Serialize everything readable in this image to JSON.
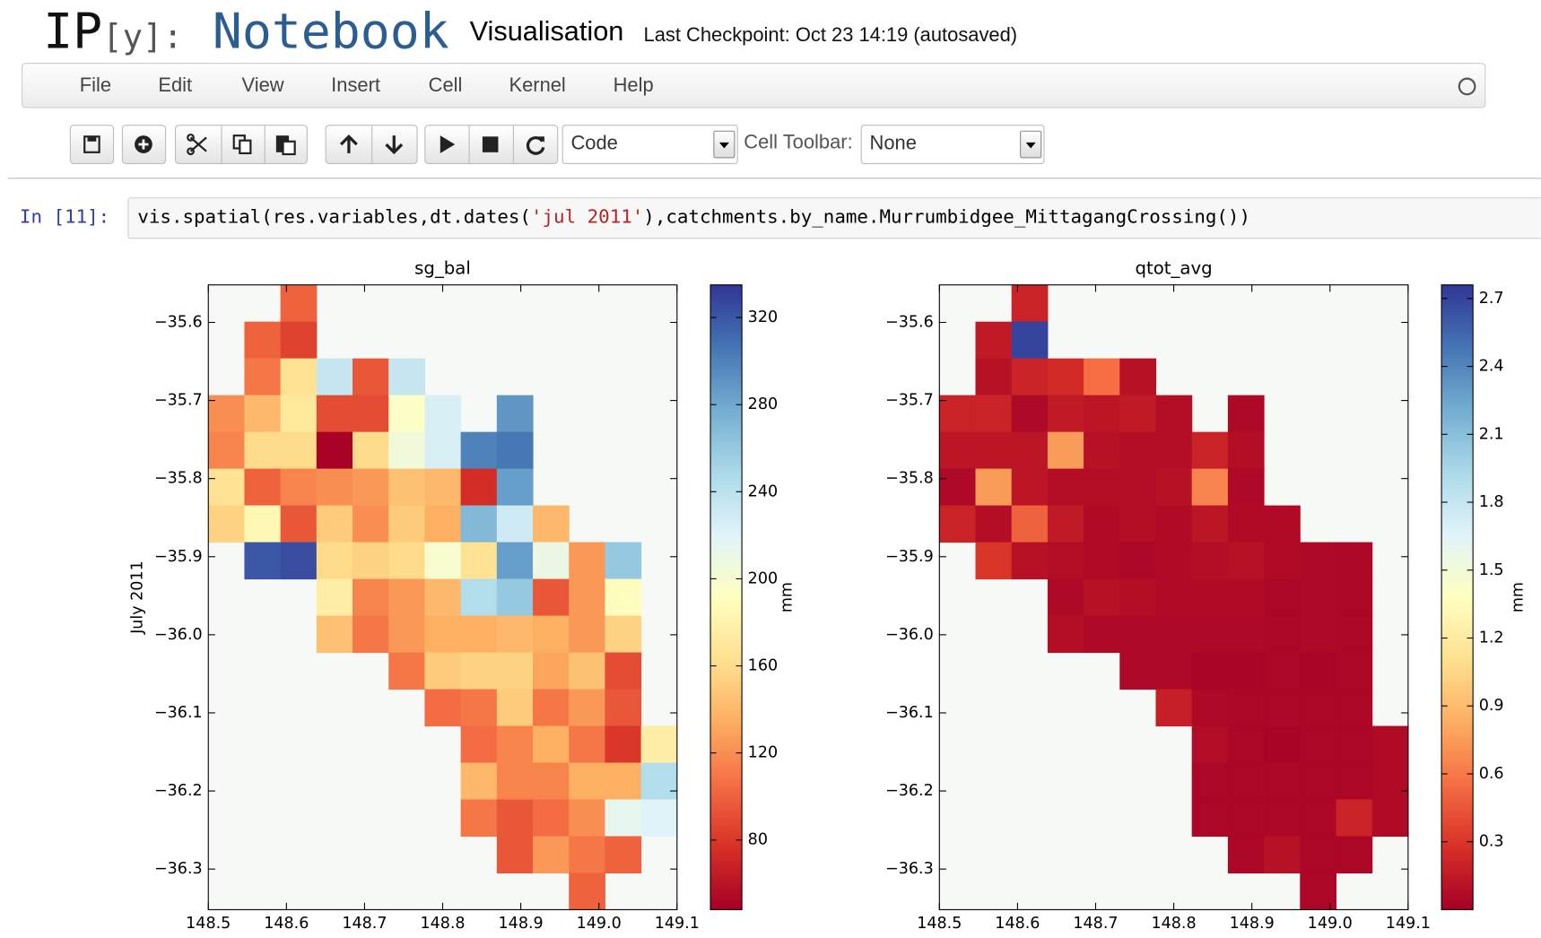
{
  "header": {
    "logo_ip": "IP",
    "logo_y": "[y]:",
    "logo_notebook": "Notebook",
    "notebook_name": "Visualisation",
    "checkpoint": "Last Checkpoint: Oct 23 14:19 (autosaved)"
  },
  "menu": [
    "File",
    "Edit",
    "View",
    "Insert",
    "Cell",
    "Kernel",
    "Help"
  ],
  "toolbar": {
    "cell_type": "Code",
    "cell_toolbar_label": "Cell Toolbar:",
    "cell_toolbar_value": "None"
  },
  "cell": {
    "prompt": "In [11]:",
    "code": [
      {
        "text": "vis.spatial(res.variables,dt.dates(",
        "color": "#000000"
      },
      {
        "text": "'jul 2011'",
        "color": "#ba2121"
      },
      {
        "text": "),catchments.by_name.Murrumbidgee_MittagangCrossing())",
        "color": "#000000"
      }
    ]
  },
  "chart_data": [
    {
      "type": "heatmap",
      "title": "sg_bal",
      "ylabel": "July 2011",
      "clabel": "mm",
      "colormap": [
        "#a50026",
        "#d73027",
        "#f46d43",
        "#fdae61",
        "#fee090",
        "#ffffbf",
        "#e0f3f8",
        "#abd9e9",
        "#74add1",
        "#4575b4",
        "#313695"
      ],
      "xlim": [
        148.5,
        149.1
      ],
      "xticks": [
        148.5,
        148.6,
        148.7,
        148.8,
        148.9,
        {
          "value": 149,
          "label": "149.0"
        },
        149.1
      ],
      "ylim": [
        -36.352,
        -35.552
      ],
      "yticks": [
        {
          "value": -35.6,
          "label": "−35.6"
        },
        {
          "value": -35.7,
          "label": "−35.7"
        },
        {
          "value": -35.8,
          "label": "−35.8"
        },
        {
          "value": -35.9,
          "label": "−35.9"
        },
        {
          "value": -36,
          "label": "−36.0"
        },
        {
          "value": -36.1,
          "label": "−36.1"
        },
        {
          "value": -36.2,
          "label": "−36.2"
        },
        {
          "value": -36.3,
          "label": "−36.3"
        }
      ],
      "clim": [
        48,
        335
      ],
      "cticks": [
        80,
        120,
        160,
        200,
        240,
        280,
        320
      ],
      "values": [
        [
          null,
          null,
          100,
          null,
          null,
          null,
          null,
          null,
          null,
          null,
          null,
          null,
          null
        ],
        [
          null,
          100,
          85,
          null,
          null,
          null,
          null,
          null,
          null,
          null,
          null,
          null,
          null
        ],
        [
          null,
          110,
          165,
          235,
          95,
          235,
          null,
          null,
          null,
          null,
          null,
          null,
          null
        ],
        [
          120,
          140,
          170,
          90,
          90,
          195,
          225,
          null,
          290,
          null,
          null,
          null,
          null
        ],
        [
          115,
          160,
          160,
          50,
          160,
          205,
          225,
          300,
          305,
          null,
          null,
          null,
          null
        ],
        [
          165,
          100,
          115,
          120,
          125,
          145,
          140,
          75,
          285,
          null,
          null,
          null,
          null
        ],
        [
          155,
          185,
          95,
          150,
          120,
          150,
          135,
          270,
          230,
          140,
          null,
          null,
          null
        ],
        [
          null,
          320,
          325,
          160,
          155,
          160,
          200,
          165,
          285,
          210,
          125,
          260,
          null
        ],
        [
          null,
          null,
          null,
          175,
          115,
          125,
          140,
          245,
          260,
          95,
          125,
          190,
          null
        ],
        [
          null,
          null,
          null,
          145,
          110,
          125,
          135,
          135,
          140,
          135,
          125,
          155,
          null
        ],
        [
          null,
          null,
          null,
          null,
          null,
          110,
          150,
          155,
          155,
          130,
          145,
          90,
          null
        ],
        [
          null,
          null,
          null,
          null,
          null,
          null,
          105,
          110,
          150,
          110,
          125,
          95,
          null
        ],
        [
          null,
          null,
          null,
          null,
          null,
          null,
          null,
          105,
          115,
          135,
          110,
          80,
          175
        ],
        [
          null,
          null,
          null,
          null,
          null,
          null,
          null,
          140,
          115,
          115,
          135,
          135,
          245
        ],
        [
          null,
          null,
          null,
          null,
          null,
          null,
          null,
          110,
          95,
          105,
          120,
          215,
          220
        ],
        [
          null,
          null,
          null,
          null,
          null,
          null,
          null,
          null,
          95,
          125,
          110,
          100,
          null
        ],
        [
          null,
          null,
          null,
          null,
          null,
          null,
          null,
          null,
          null,
          null,
          100,
          null,
          null
        ]
      ]
    },
    {
      "type": "heatmap",
      "title": "qtot_avg",
      "clabel": "mm",
      "colormap": [
        "#a50026",
        "#d73027",
        "#f46d43",
        "#fdae61",
        "#fee090",
        "#ffffbf",
        "#e0f3f8",
        "#abd9e9",
        "#74add1",
        "#4575b4",
        "#313695"
      ],
      "xlim": [
        148.5,
        149.1
      ],
      "xticks": [
        148.5,
        148.6,
        148.7,
        148.8,
        148.9,
        {
          "value": 149,
          "label": "149.0"
        },
        149.1
      ],
      "ylim": [
        -36.352,
        -35.552
      ],
      "yticks": [
        {
          "value": -35.6,
          "label": "−35.6"
        },
        {
          "value": -35.7,
          "label": "−35.7"
        },
        {
          "value": -35.8,
          "label": "−35.8"
        },
        {
          "value": -35.9,
          "label": "−35.9"
        },
        {
          "value": -36,
          "label": "−36.0"
        },
        {
          "value": -36.1,
          "label": "−36.1"
        },
        {
          "value": -36.2,
          "label": "−36.2"
        },
        {
          "value": -36.3,
          "label": "−36.3"
        }
      ],
      "clim": [
        0,
        2.76
      ],
      "cticks": [
        0.3,
        0.6,
        0.9,
        1.2,
        1.5,
        1.8,
        2.1,
        2.4,
        2.7
      ],
      "values": [
        [
          null,
          null,
          0.2,
          null,
          null,
          null,
          null,
          null,
          null,
          null,
          null,
          null,
          null
        ],
        [
          null,
          0.15,
          2.7,
          null,
          null,
          null,
          null,
          null,
          null,
          null,
          null,
          null,
          null
        ],
        [
          null,
          0.1,
          0.2,
          0.25,
          0.55,
          0.1,
          null,
          null,
          null,
          null,
          null,
          null,
          null
        ],
        [
          0.2,
          0.2,
          0.05,
          0.15,
          0.12,
          0.15,
          0.08,
          null,
          0.05,
          null,
          null,
          null,
          null
        ],
        [
          0.12,
          0.12,
          0.12,
          0.75,
          0.1,
          0.08,
          0.08,
          0.2,
          0.08,
          null,
          null,
          null,
          null
        ],
        [
          0.05,
          0.75,
          0.12,
          0.08,
          0.08,
          0.08,
          0.1,
          0.65,
          0.05,
          null,
          null,
          null,
          null
        ],
        [
          0.2,
          0.08,
          0.5,
          0.15,
          0.06,
          0.08,
          0.06,
          0.12,
          0.06,
          0.06,
          null,
          null,
          null
        ],
        [
          null,
          0.3,
          0.1,
          0.08,
          0.06,
          0.04,
          0.06,
          0.08,
          0.1,
          0.06,
          0.05,
          0.04,
          null
        ],
        [
          null,
          null,
          null,
          0.05,
          0.1,
          0.08,
          0.06,
          0.06,
          0.06,
          0.04,
          0.05,
          0.04,
          null
        ],
        [
          null,
          null,
          null,
          0.08,
          0.05,
          0.05,
          0.05,
          0.05,
          0.05,
          0.04,
          0.05,
          0.04,
          null
        ],
        [
          null,
          null,
          null,
          null,
          null,
          0.05,
          0.05,
          0.03,
          0.03,
          0.04,
          0.03,
          0.04,
          null
        ],
        [
          null,
          null,
          null,
          null,
          null,
          null,
          0.18,
          0.05,
          0.04,
          0.04,
          0.04,
          0.04,
          null
        ],
        [
          null,
          null,
          null,
          null,
          null,
          null,
          null,
          0.07,
          0.04,
          0.02,
          0.04,
          0.04,
          0.06
        ],
        [
          null,
          null,
          null,
          null,
          null,
          null,
          null,
          0.04,
          0.04,
          0.04,
          0.04,
          0.04,
          0.06
        ],
        [
          null,
          null,
          null,
          null,
          null,
          null,
          null,
          0.04,
          0.04,
          0.04,
          0.04,
          0.2,
          0.06
        ],
        [
          null,
          null,
          null,
          null,
          null,
          null,
          null,
          null,
          0.04,
          0.1,
          0.04,
          0.04,
          null
        ],
        [
          null,
          null,
          null,
          null,
          null,
          null,
          null,
          null,
          null,
          null,
          0.04,
          null,
          null
        ]
      ]
    }
  ]
}
